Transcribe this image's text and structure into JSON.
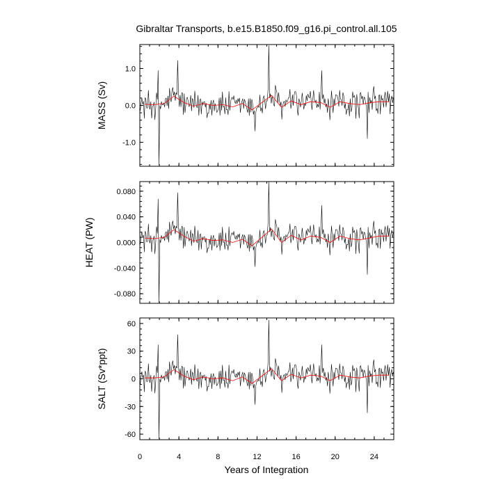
{
  "chart_data": {
    "type": "line",
    "title": "Gibraltar Transports, b.e15.B1850.f09_g16.pi_control.all.105",
    "xlabel": "Years of Integration",
    "xlim": [
      0,
      26
    ],
    "xticks": [
      0,
      4,
      8,
      12,
      16,
      20,
      24
    ],
    "xtick_labels": [
      "0",
      "4",
      "8",
      "12",
      "16",
      "20",
      "24"
    ],
    "series_colors": {
      "monthly": "#000000",
      "annual": "#ff0000"
    },
    "panels": [
      {
        "ylabel": "MASS (Sv)",
        "ylim": [
          -1.65,
          1.65
        ],
        "yticks": [
          -1.0,
          0.0,
          1.0
        ],
        "ytick_labels": [
          "-1.0",
          "0.0",
          "1.0"
        ],
        "annual": [
          {
            "x": 0.5,
            "y": 0.03
          },
          {
            "x": 1.5,
            "y": 0.02
          },
          {
            "x": 2.5,
            "y": 0.05
          },
          {
            "x": 3.5,
            "y": 0.25
          },
          {
            "x": 4.5,
            "y": 0.08
          },
          {
            "x": 5.5,
            "y": -0.02
          },
          {
            "x": 6.5,
            "y": 0.05
          },
          {
            "x": 7.5,
            "y": 0.0
          },
          {
            "x": 8.5,
            "y": 0.02
          },
          {
            "x": 9.5,
            "y": -0.04
          },
          {
            "x": 10.5,
            "y": 0.05
          },
          {
            "x": 11.5,
            "y": -0.12
          },
          {
            "x": 12.5,
            "y": 0.08
          },
          {
            "x": 13.5,
            "y": 0.27
          },
          {
            "x": 14.5,
            "y": -0.05
          },
          {
            "x": 15.5,
            "y": 0.12
          },
          {
            "x": 16.5,
            "y": 0.02
          },
          {
            "x": 17.5,
            "y": 0.1
          },
          {
            "x": 18.5,
            "y": 0.08
          },
          {
            "x": 19.5,
            "y": -0.05
          },
          {
            "x": 20.5,
            "y": 0.1
          },
          {
            "x": 21.5,
            "y": 0.05
          },
          {
            "x": 22.5,
            "y": 0.02
          },
          {
            "x": 23.5,
            "y": 0.07
          },
          {
            "x": 24.5,
            "y": 0.1
          },
          {
            "x": 25.5,
            "y": 0.1
          }
        ],
        "spikes": [
          {
            "x": 1.95,
            "y": -1.62
          },
          {
            "x": 1.85,
            "y": 0.95
          },
          {
            "x": 3.85,
            "y": 1.22
          },
          {
            "x": 13.2,
            "y": 1.63
          },
          {
            "x": 23.3,
            "y": -0.9
          },
          {
            "x": 11.8,
            "y": -0.7
          },
          {
            "x": 18.6,
            "y": 0.95
          }
        ]
      },
      {
        "ylabel": "HEAT (PW)",
        "ylim": [
          -0.095,
          0.095
        ],
        "yticks": [
          -0.08,
          -0.04,
          0.0,
          0.04,
          0.08
        ],
        "ytick_labels": [
          "-0.080",
          "-0.040",
          "0.000",
          "0.040",
          "0.080"
        ],
        "annual": [
          {
            "x": 0.5,
            "y": 0.007
          },
          {
            "x": 1.5,
            "y": 0.006
          },
          {
            "x": 2.5,
            "y": 0.008
          },
          {
            "x": 3.5,
            "y": 0.02
          },
          {
            "x": 4.5,
            "y": 0.01
          },
          {
            "x": 5.5,
            "y": 0.002
          },
          {
            "x": 6.5,
            "y": 0.006
          },
          {
            "x": 7.5,
            "y": 0.003
          },
          {
            "x": 8.5,
            "y": 0.004
          },
          {
            "x": 9.5,
            "y": 0.0
          },
          {
            "x": 10.5,
            "y": 0.005
          },
          {
            "x": 11.5,
            "y": -0.005
          },
          {
            "x": 12.5,
            "y": 0.008
          },
          {
            "x": 13.5,
            "y": 0.021
          },
          {
            "x": 14.5,
            "y": 0.0
          },
          {
            "x": 15.5,
            "y": 0.011
          },
          {
            "x": 16.5,
            "y": 0.004
          },
          {
            "x": 17.5,
            "y": 0.01
          },
          {
            "x": 18.5,
            "y": 0.008
          },
          {
            "x": 19.5,
            "y": 0.0
          },
          {
            "x": 20.5,
            "y": 0.01
          },
          {
            "x": 21.5,
            "y": 0.006
          },
          {
            "x": 22.5,
            "y": 0.004
          },
          {
            "x": 23.5,
            "y": 0.007
          },
          {
            "x": 24.5,
            "y": 0.01
          },
          {
            "x": 25.5,
            "y": 0.01
          }
        ],
        "spikes": [
          {
            "x": 1.95,
            "y": -0.094
          },
          {
            "x": 1.85,
            "y": 0.068
          },
          {
            "x": 3.85,
            "y": 0.078
          },
          {
            "x": 13.2,
            "y": 0.097
          },
          {
            "x": 23.3,
            "y": -0.05
          },
          {
            "x": 11.8,
            "y": -0.038
          },
          {
            "x": 18.6,
            "y": 0.058
          }
        ]
      },
      {
        "ylabel": "SALT (Sv*ppt)",
        "ylim": [
          -66,
          66
        ],
        "yticks": [
          -60,
          -30,
          0,
          30,
          60
        ],
        "ytick_labels": [
          "-60",
          "-30",
          "0",
          "30",
          "60"
        ],
        "annual": [
          {
            "x": 0.5,
            "y": 1
          },
          {
            "x": 1.5,
            "y": 1
          },
          {
            "x": 2.5,
            "y": 2
          },
          {
            "x": 3.5,
            "y": 10
          },
          {
            "x": 4.5,
            "y": 3
          },
          {
            "x": 5.5,
            "y": -1
          },
          {
            "x": 6.5,
            "y": 2
          },
          {
            "x": 7.5,
            "y": 0
          },
          {
            "x": 8.5,
            "y": 1
          },
          {
            "x": 9.5,
            "y": -2
          },
          {
            "x": 10.5,
            "y": 2
          },
          {
            "x": 11.5,
            "y": -5
          },
          {
            "x": 12.5,
            "y": 3
          },
          {
            "x": 13.5,
            "y": 11
          },
          {
            "x": 14.5,
            "y": -2
          },
          {
            "x": 15.5,
            "y": 5
          },
          {
            "x": 16.5,
            "y": 1
          },
          {
            "x": 17.5,
            "y": 4
          },
          {
            "x": 18.5,
            "y": 3
          },
          {
            "x": 19.5,
            "y": -2
          },
          {
            "x": 20.5,
            "y": 4
          },
          {
            "x": 21.5,
            "y": 2
          },
          {
            "x": 22.5,
            "y": 1
          },
          {
            "x": 23.5,
            "y": 3
          },
          {
            "x": 24.5,
            "y": 4
          },
          {
            "x": 25.5,
            "y": 4
          }
        ],
        "spikes": [
          {
            "x": 1.95,
            "y": -65
          },
          {
            "x": 1.85,
            "y": 37
          },
          {
            "x": 3.85,
            "y": 48
          },
          {
            "x": 13.2,
            "y": 64
          },
          {
            "x": 23.3,
            "y": -37
          },
          {
            "x": 11.8,
            "y": -28
          },
          {
            "x": 18.6,
            "y": 37
          }
        ]
      }
    ]
  }
}
